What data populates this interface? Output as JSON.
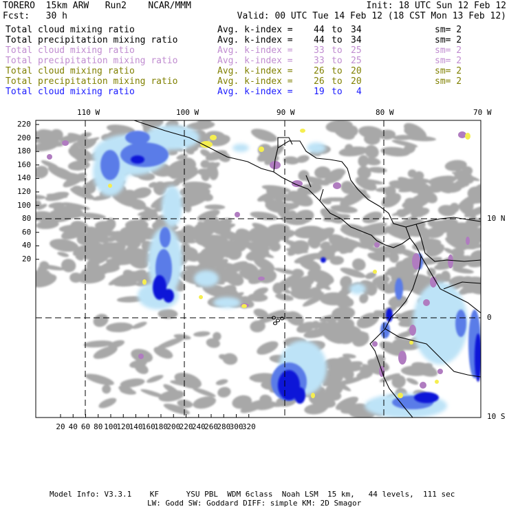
{
  "header": {
    "model": "TORERO  15km ARW   Run2    NCAR/MMM",
    "init": "Init: 18 UTC Sun 12 Feb 12",
    "fcst": "Fcst:   30 h",
    "valid": "Valid: 00 UTC Tue 14 Feb 12 (18 CST Mon 13 Feb 12)"
  },
  "legend": [
    {
      "name": "Total cloud mixing ratio",
      "avg": "Avg. k-index =",
      "from": "44",
      "to": "to",
      "end": "34",
      "sm": "sm= 2",
      "color": "#000000"
    },
    {
      "name": "Total precipitation mixing ratio",
      "avg": "Avg. k-index =",
      "from": "44",
      "to": "to",
      "end": "34",
      "sm": "sm= 2",
      "color": "#000000"
    },
    {
      "name": "Total cloud mixing ratio",
      "avg": "Avg. k-index =",
      "from": "33",
      "to": "to",
      "end": "25",
      "sm": "sm= 2",
      "color": "#c08cd0"
    },
    {
      "name": "Total precipitation mixing ratio",
      "avg": "Avg. k-index =",
      "from": "33",
      "to": "to",
      "end": "25",
      "sm": "sm= 2",
      "color": "#c08cd0"
    },
    {
      "name": "Total cloud mixing ratio",
      "avg": "Avg. k-index =",
      "from": "26",
      "to": "to",
      "end": "20",
      "sm": "sm= 2",
      "color": "#808000"
    },
    {
      "name": "Total precipitation mixing ratio",
      "avg": "Avg. k-index =",
      "from": "26",
      "to": "to",
      "end": "20",
      "sm": "sm= 2",
      "color": "#808000"
    },
    {
      "name": "Total cloud mixing ratio",
      "avg": "Avg. k-index =",
      "from": "19",
      "to": "to",
      "end": "4",
      "sm": "",
      "color": "#1a1aff"
    }
  ],
  "axes": {
    "top_labels": [
      "110 W",
      "100 W",
      "90 W",
      "80 W",
      "70 W"
    ],
    "right_labels": [
      "10 N",
      "0",
      "10 S"
    ],
    "left_ticks": [
      "220",
      "200",
      "180",
      "160",
      "140",
      "120",
      "100",
      "80",
      "60",
      "40",
      "20"
    ],
    "bottom_ticks": [
      "20",
      "40",
      "60",
      "80",
      "100",
      "120",
      "140",
      "160",
      "180",
      "200",
      "220",
      "240",
      "260",
      "280",
      "300",
      "320"
    ]
  },
  "footer": {
    "line1": "Model Info: V3.3.1    KF      YSU PBL  WDM 6class  Noah LSM  15 km,   44 levels,  111 sec",
    "line2": "LW: Godd SW: Goddard DIFF: simple KM: 2D Smagor"
  },
  "colors": {
    "gray_cloud": "#a8a8a8",
    "light_blue": "#bde3f7",
    "medium_blue": "#5a7ce8",
    "dark_blue": "#0a14d8",
    "purple": "#b07cc0",
    "yellow": "#f5ee50",
    "coast": "#000000",
    "grid": "#000000"
  }
}
